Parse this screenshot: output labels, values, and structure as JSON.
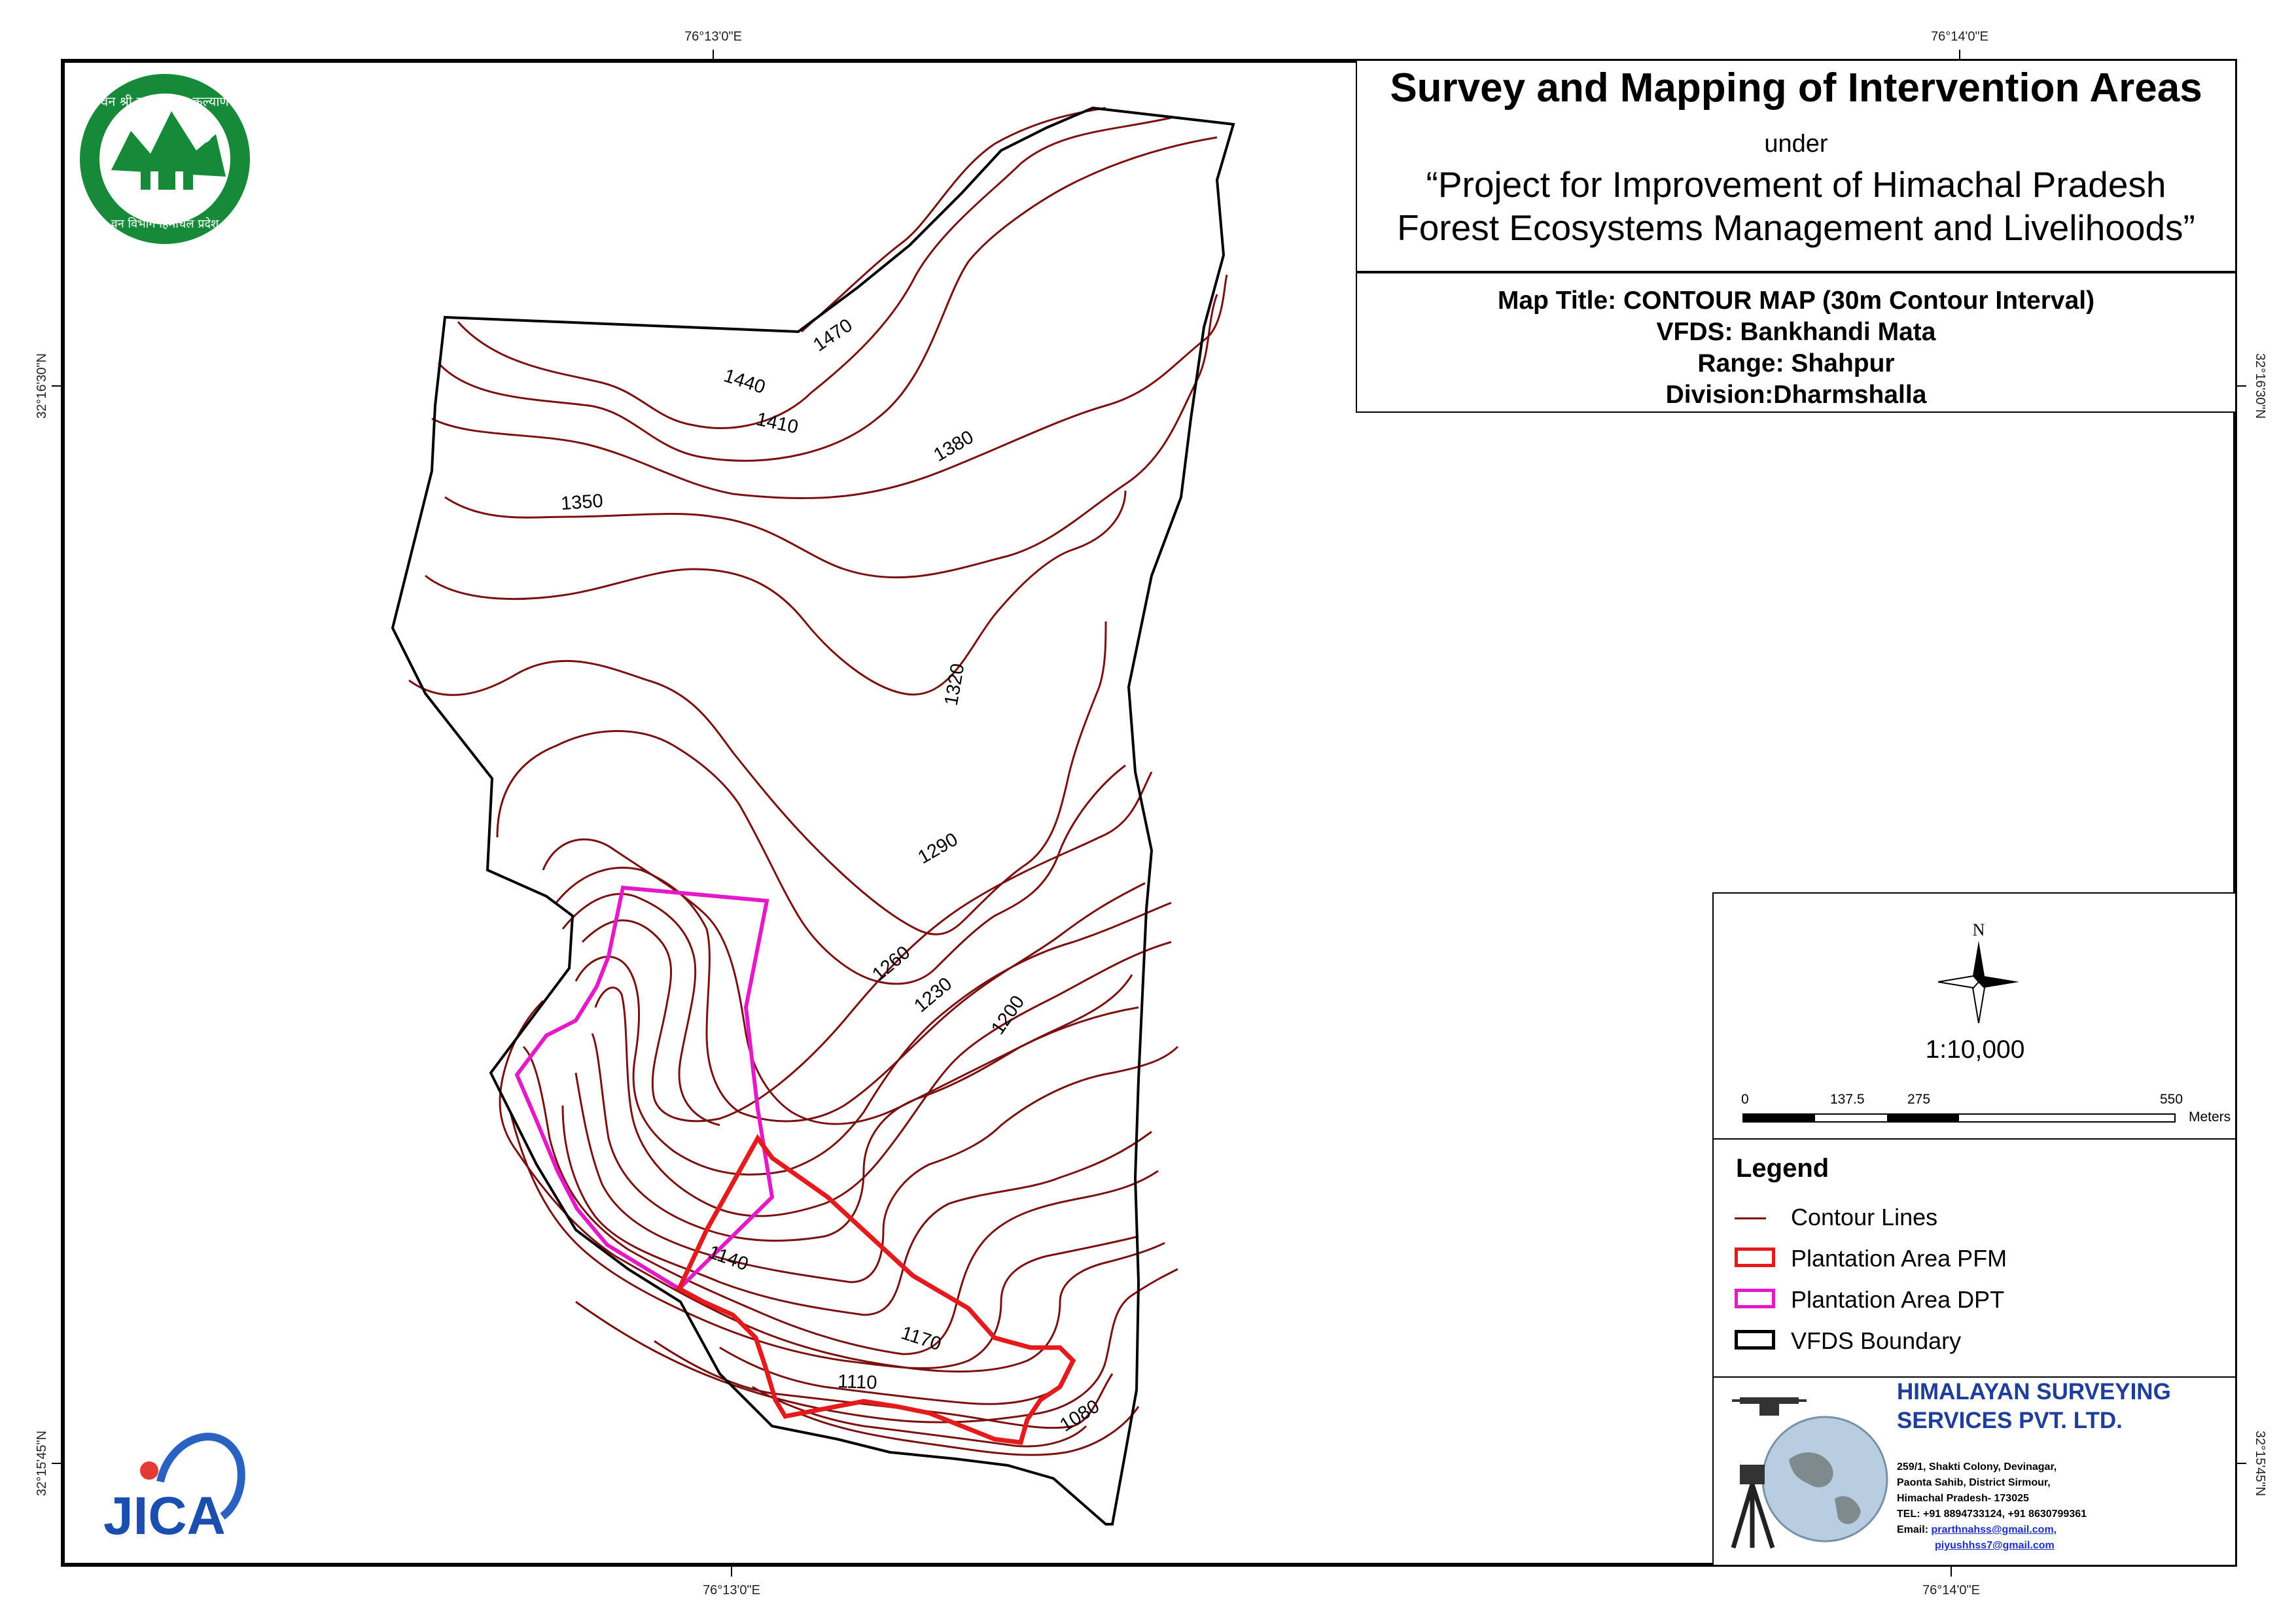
{
  "title": {
    "main": "Survey and Mapping of Intervention Areas",
    "under": "under",
    "project_line1": "“Project for Improvement of Himachal Pradesh",
    "project_line2": "Forest Ecosystems Management and Livelihoods”"
  },
  "info": {
    "map_title": "Map Title: CONTOUR MAP (30m Contour Interval)",
    "vfds": "VFDS: Bankhandi Mata",
    "range": "Range: Shahpur",
    "division": "Division:Dharmshalla"
  },
  "coordinates": {
    "top_left": "76°13'0\"E",
    "top_right": "76°14'0\"E",
    "bottom_left": "76°13'0\"E",
    "bottom_right": "76°14'0\"E",
    "left_upper": "32°16'30\"N",
    "left_lower": "32°15'45\"N",
    "right_upper": "32°16'30\"N",
    "right_lower": "32°15'45\"N"
  },
  "contour_labels": [
    "1470",
    "1440",
    "1410",
    "1380",
    "1350",
    "1320",
    "1290",
    "1260",
    "1230",
    "1200",
    "1140",
    "1170",
    "1110",
    "1080"
  ],
  "north_arrow": {
    "label": "N"
  },
  "scale": {
    "ratio": "1:10,000",
    "ticks": [
      "0",
      "137.5",
      "275",
      "550"
    ],
    "unit": "Meters"
  },
  "legend": {
    "title": "Legend",
    "items": [
      {
        "label": "Contour Lines",
        "color": "#7a1010"
      },
      {
        "label": "Plantation Area PFM",
        "color": "#e41a1c"
      },
      {
        "label": "Plantation Area DPT",
        "color": "#e619c8"
      },
      {
        "label": "VFDS Boundary",
        "color": "#000000"
      }
    ]
  },
  "firm": {
    "name_line1": "HIMALAYAN SURVEYING",
    "name_line2": "SERVICES PVT. LTD.",
    "address1": "259/1, Shakti Colony, Devinagar,",
    "address2": "Paonta Sahib, District Sirmour,",
    "address3": "Himachal Pradesh- 173025",
    "tel": "TEL: +91 8894733124, +91 8630799361",
    "email_label": "Email: ",
    "email1": "prarthnahss@gmail.com,",
    "email2": "piyushhss7@gmail.com"
  },
  "logos": {
    "forest_dept_text_top": "वन श्री त्राण, विश्व कल्याण",
    "forest_dept_text_bottom": "वन विभाग हिमाचल प्रदेश",
    "jica": "JICA"
  }
}
